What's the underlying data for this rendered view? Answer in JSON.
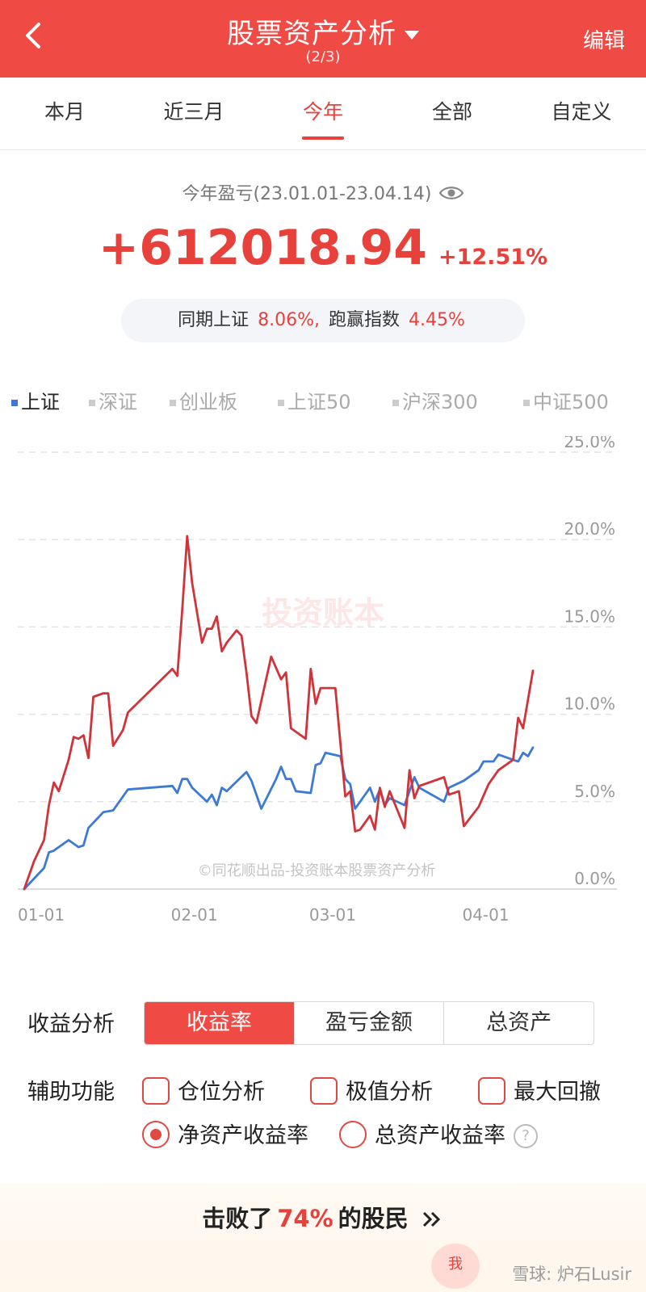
{
  "header": {
    "title": "股票资产分析",
    "subtitle": "(2/3)",
    "edit_label": "编辑"
  },
  "tabs": [
    {
      "label": "本月",
      "active": false
    },
    {
      "label": "近三月",
      "active": false
    },
    {
      "label": "今年",
      "active": true
    },
    {
      "label": "全部",
      "active": false
    },
    {
      "label": "自定义",
      "active": false
    }
  ],
  "summary": {
    "label": "今年盈亏(23.01.01-23.04.14)",
    "value": "+612018.94",
    "percent": "+12.51%",
    "compare_prefix": "同期上证",
    "compare_index_pct": "8.06%,",
    "compare_mid": "跑赢指数",
    "compare_outperform_pct": "4.45%"
  },
  "indices": [
    {
      "label": "上证",
      "active": true
    },
    {
      "label": "深证",
      "active": false
    },
    {
      "label": "创业板",
      "active": false
    },
    {
      "label": "上证50",
      "active": false
    },
    {
      "label": "沪深300",
      "active": false
    },
    {
      "label": "中证500",
      "active": false
    }
  ],
  "colors": {
    "accent": "#f04a45",
    "portfolio_line": "#d0333a",
    "index_line": "#3c7ad6"
  },
  "chart_watermark": "投资账本",
  "chart_credit": "©同花顺出品-投资账本股票资产分析",
  "chart_data": {
    "type": "line",
    "y_tick_labels": [
      "0.0%",
      "5.0%",
      "10.0%",
      "15.0%",
      "20.0%",
      "25.0%"
    ],
    "x_tick_labels": [
      "01-01",
      "02-01",
      "03-01",
      "04-01"
    ],
    "ylim": [
      0,
      25
    ],
    "xlim": [
      "2023-01-01",
      "2023-04-14"
    ],
    "grid": true,
    "series": [
      {
        "points": [
          [
            "2023-01-01",
            0.0
          ],
          [
            "2023-01-03",
            1.6
          ],
          [
            "2023-01-05",
            2.8
          ],
          [
            "2023-01-06",
            4.8
          ],
          [
            "2023-01-07",
            6.1
          ],
          [
            "2023-01-08",
            5.6
          ],
          [
            "2023-01-10",
            7.4
          ],
          [
            "2023-01-11",
            8.7
          ],
          [
            "2023-01-12",
            8.6
          ],
          [
            "2023-01-13",
            8.8
          ],
          [
            "2023-01-14",
            7.5
          ],
          [
            "2023-01-15",
            11.0
          ],
          [
            "2023-01-17",
            11.2
          ],
          [
            "2023-01-18",
            11.2
          ],
          [
            "2023-01-19",
            8.2
          ],
          [
            "2023-01-21",
            9.1
          ],
          [
            "2023-01-22",
            10.1
          ],
          [
            "2023-01-31",
            12.6
          ],
          [
            "2023-02-01",
            12.2
          ],
          [
            "2023-02-02",
            16.0
          ],
          [
            "2023-02-03",
            20.2
          ],
          [
            "2023-02-04",
            17.5
          ],
          [
            "2023-02-06",
            14.1
          ],
          [
            "2023-02-07",
            14.9
          ],
          [
            "2023-02-08",
            14.9
          ],
          [
            "2023-02-09",
            15.6
          ],
          [
            "2023-02-10",
            13.6
          ],
          [
            "2023-02-11",
            14.1
          ],
          [
            "2023-02-13",
            14.8
          ],
          [
            "2023-02-14",
            14.5
          ],
          [
            "2023-02-15",
            12.4
          ],
          [
            "2023-02-16",
            9.9
          ],
          [
            "2023-02-17",
            9.5
          ],
          [
            "2023-02-20",
            13.3
          ],
          [
            "2023-02-22",
            12.0
          ],
          [
            "2023-02-23",
            12.4
          ],
          [
            "2023-02-24",
            9.2
          ],
          [
            "2023-02-27",
            8.6
          ],
          [
            "2023-02-28",
            12.6
          ],
          [
            "2023-03-01",
            10.6
          ],
          [
            "2023-03-02",
            11.5
          ],
          [
            "2023-03-05",
            11.5
          ],
          [
            "2023-03-07",
            5.3
          ],
          [
            "2023-03-08",
            5.6
          ],
          [
            "2023-03-09",
            3.3
          ],
          [
            "2023-03-10",
            3.4
          ],
          [
            "2023-03-12",
            4.2
          ],
          [
            "2023-03-13",
            3.4
          ],
          [
            "2023-03-14",
            5.8
          ],
          [
            "2023-03-15",
            4.7
          ],
          [
            "2023-03-16",
            5.6
          ],
          [
            "2023-03-19",
            3.5
          ],
          [
            "2023-03-20",
            6.8
          ],
          [
            "2023-03-21",
            5.2
          ],
          [
            "2023-03-22",
            5.9
          ],
          [
            "2023-03-24",
            6.1
          ],
          [
            "2023-03-27",
            6.4
          ],
          [
            "2023-03-28",
            5.4
          ],
          [
            "2023-03-30",
            5.6
          ],
          [
            "2023-03-31",
            3.6
          ],
          [
            "2023-04-03",
            4.7
          ],
          [
            "2023-04-05",
            6.0
          ],
          [
            "2023-04-07",
            6.8
          ],
          [
            "2023-04-10",
            7.4
          ],
          [
            "2023-04-11",
            9.8
          ],
          [
            "2023-04-12",
            9.2
          ],
          [
            "2023-04-14",
            12.5
          ]
        ]
      },
      {
        "points": [
          [
            "2023-01-01",
            0.0
          ],
          [
            "2023-01-03",
            0.6
          ],
          [
            "2023-01-05",
            1.2
          ],
          [
            "2023-01-06",
            2.1
          ],
          [
            "2023-01-07",
            2.2
          ],
          [
            "2023-01-10",
            2.8
          ],
          [
            "2023-01-12",
            2.4
          ],
          [
            "2023-01-13",
            2.5
          ],
          [
            "2023-01-14",
            3.5
          ],
          [
            "2023-01-17",
            4.4
          ],
          [
            "2023-01-19",
            4.5
          ],
          [
            "2023-01-22",
            5.7
          ],
          [
            "2023-01-31",
            5.9
          ],
          [
            "2023-02-01",
            5.5
          ],
          [
            "2023-02-02",
            6.3
          ],
          [
            "2023-02-03",
            6.3
          ],
          [
            "2023-02-04",
            5.8
          ],
          [
            "2023-02-07",
            5.0
          ],
          [
            "2023-02-08",
            5.4
          ],
          [
            "2023-02-09",
            4.8
          ],
          [
            "2023-02-10",
            5.8
          ],
          [
            "2023-02-11",
            5.6
          ],
          [
            "2023-02-15",
            6.7
          ],
          [
            "2023-02-16",
            6.2
          ],
          [
            "2023-02-18",
            4.6
          ],
          [
            "2023-02-21",
            6.3
          ],
          [
            "2023-02-22",
            7.0
          ],
          [
            "2023-02-23",
            6.3
          ],
          [
            "2023-02-24",
            6.3
          ],
          [
            "2023-02-25",
            5.6
          ],
          [
            "2023-02-28",
            5.5
          ],
          [
            "2023-03-01",
            7.1
          ],
          [
            "2023-03-02",
            7.2
          ],
          [
            "2023-03-03",
            7.8
          ],
          [
            "2023-03-06",
            7.6
          ],
          [
            "2023-03-07",
            6.3
          ],
          [
            "2023-03-08",
            6.0
          ],
          [
            "2023-03-09",
            4.6
          ],
          [
            "2023-03-12",
            5.8
          ],
          [
            "2023-03-13",
            5.0
          ],
          [
            "2023-03-14",
            5.7
          ],
          [
            "2023-03-15",
            4.8
          ],
          [
            "2023-03-16",
            5.2
          ],
          [
            "2023-03-19",
            4.8
          ],
          [
            "2023-03-20",
            5.6
          ],
          [
            "2023-03-21",
            6.4
          ],
          [
            "2023-03-22",
            5.8
          ],
          [
            "2023-03-27",
            5.0
          ],
          [
            "2023-03-28",
            5.8
          ],
          [
            "2023-03-31",
            6.2
          ],
          [
            "2023-04-03",
            6.8
          ],
          [
            "2023-04-04",
            7.3
          ],
          [
            "2023-04-06",
            7.3
          ],
          [
            "2023-04-07",
            7.7
          ],
          [
            "2023-04-10",
            7.4
          ],
          [
            "2023-04-11",
            7.3
          ],
          [
            "2023-04-12",
            7.8
          ],
          [
            "2023-04-13",
            7.6
          ],
          [
            "2023-04-14",
            8.1
          ]
        ]
      }
    ]
  },
  "analysis": {
    "label": "收益分析",
    "options": [
      {
        "label": "收益率",
        "active": true
      },
      {
        "label": "盈亏金额",
        "active": false
      },
      {
        "label": "总资产",
        "active": false
      }
    ]
  },
  "aux": {
    "label": "辅助功能",
    "checkboxes": [
      {
        "label": "仓位分析",
        "checked": false
      },
      {
        "label": "极值分析",
        "checked": false
      },
      {
        "label": "最大回撤",
        "checked": false
      }
    ],
    "radios": [
      {
        "label": "净资产收益率",
        "selected": true
      },
      {
        "label": "总资产收益率",
        "selected": false
      }
    ],
    "help_icon": "question-circle-icon"
  },
  "beat": {
    "prefix": "击败了",
    "percent": "74%",
    "suffix": "的股民"
  },
  "bottom": {
    "me_label": "我",
    "watermark": "雪球: 炉石Lusir"
  }
}
